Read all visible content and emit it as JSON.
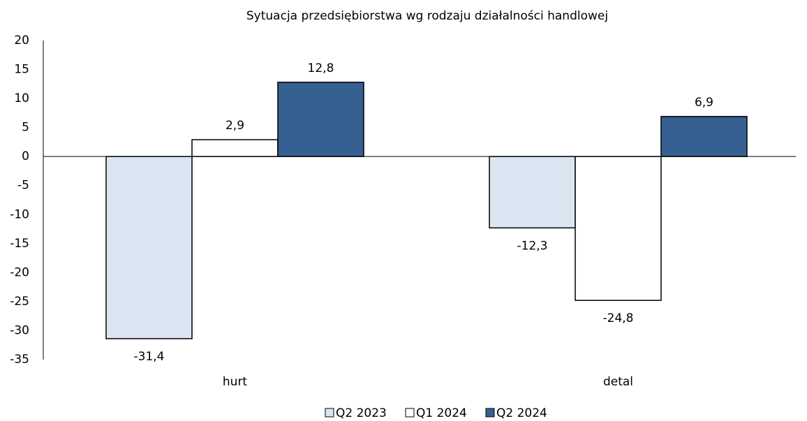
{
  "chart_data": {
    "type": "bar",
    "title": "Sytuacja przedsiębiorstwa wg rodzaju działalności handlowej",
    "categories": [
      "hurt",
      "detal"
    ],
    "series": [
      {
        "name": "Q2 2023",
        "color": "#dce6f2",
        "values": [
          -31.4,
          -12.3
        ],
        "value_labels": [
          "-31,4",
          "-12,3"
        ]
      },
      {
        "name": "Q1 2024",
        "color": "#ffffff",
        "values": [
          2.9,
          -24.8
        ],
        "value_labels": [
          "2,9",
          "-24,8"
        ]
      },
      {
        "name": "Q2 2024",
        "color": "#366092",
        "values": [
          12.8,
          6.9
        ],
        "value_labels": [
          "12,8",
          "6,9"
        ]
      }
    ],
    "ylim": [
      -35,
      20
    ],
    "yticks": [
      -35,
      -30,
      -25,
      -20,
      -15,
      -10,
      -5,
      0,
      5,
      10,
      15,
      20
    ],
    "grid": false,
    "legend": "bottom"
  }
}
